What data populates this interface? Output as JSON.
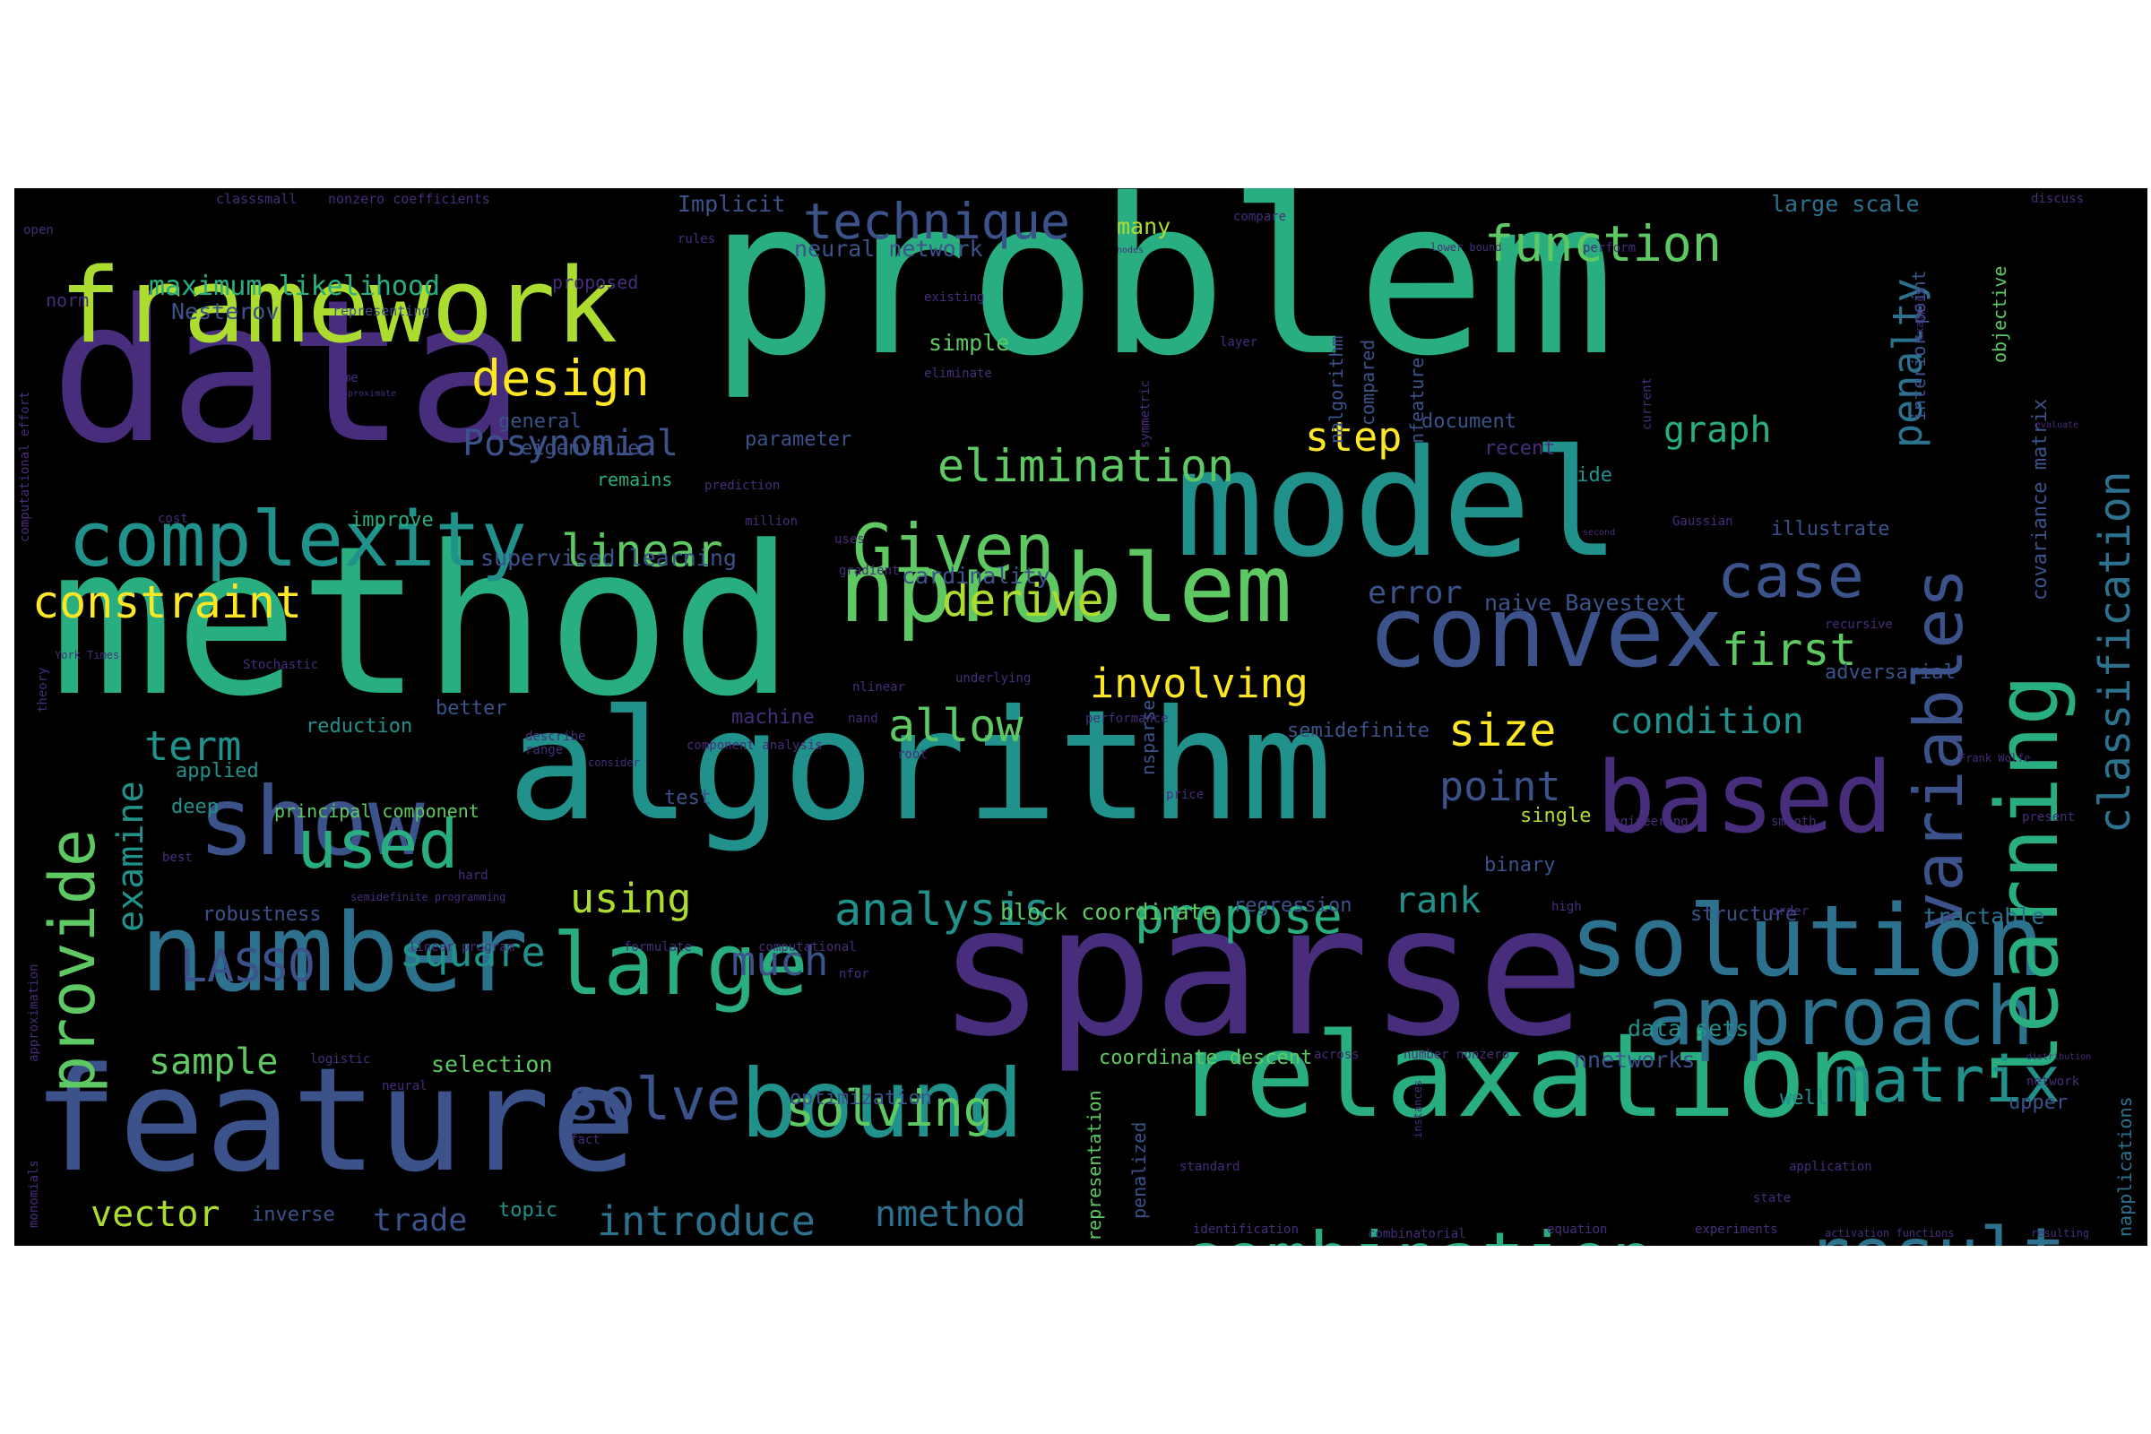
{
  "palette": {
    "purple": "#472d7b",
    "indigo": "#3b528b",
    "blue": "#2c728e",
    "teal": "#21918c",
    "green": "#28ae80",
    "lime": "#5ec962",
    "yellowgreen": "#addc30",
    "yellow": "#fde725",
    "background": "#000000"
  },
  "words": [
    {
      "text": "problem",
      "c": "green"
    },
    {
      "text": "method",
      "c": "green"
    },
    {
      "text": "data",
      "c": "purple"
    },
    {
      "text": "algorithm",
      "c": "teal"
    },
    {
      "text": "sparse",
      "c": "purple"
    },
    {
      "text": "feature",
      "c": "indigo"
    },
    {
      "text": "model",
      "c": "teal"
    },
    {
      "text": "relaxation",
      "c": "green"
    },
    {
      "text": "framework",
      "c": "yellowgreen"
    },
    {
      "text": "number",
      "c": "blue"
    },
    {
      "text": "nproblem",
      "c": "lime"
    },
    {
      "text": "solution",
      "c": "blue"
    },
    {
      "text": "convex",
      "c": "indigo"
    },
    {
      "text": "based",
      "c": "purple"
    },
    {
      "text": "large",
      "c": "green"
    },
    {
      "text": "show",
      "c": "indigo"
    },
    {
      "text": "bound",
      "c": "teal"
    },
    {
      "text": "approach",
      "c": "blue"
    },
    {
      "text": "complexity",
      "c": "teal"
    },
    {
      "text": "learning",
      "c": "green"
    },
    {
      "text": "combination",
      "c": "green"
    },
    {
      "text": "variables",
      "c": "indigo"
    },
    {
      "text": "result",
      "c": "blue"
    },
    {
      "text": "Given",
      "c": "lime"
    },
    {
      "text": "provide",
      "c": "lime"
    },
    {
      "text": "matrix",
      "c": "teal"
    },
    {
      "text": "solve",
      "c": "indigo"
    },
    {
      "text": "used",
      "c": "green"
    },
    {
      "text": "case",
      "c": "indigo"
    },
    {
      "text": "function",
      "c": "lime"
    },
    {
      "text": "technique",
      "c": "indigo"
    },
    {
      "text": "solving",
      "c": "lime"
    },
    {
      "text": "propose",
      "c": "green"
    },
    {
      "text": "design",
      "c": "yellow"
    },
    {
      "text": "classification",
      "c": "blue"
    },
    {
      "text": "elimination",
      "c": "lime"
    },
    {
      "text": "analysis",
      "c": "teal"
    },
    {
      "text": "LASSO",
      "c": "indigo"
    },
    {
      "text": "constraint",
      "c": "yellow"
    },
    {
      "text": "linear",
      "c": "lime"
    },
    {
      "text": "derive",
      "c": "yellowgreen"
    },
    {
      "text": "allow",
      "c": "lime"
    },
    {
      "text": "first",
      "c": "lime"
    },
    {
      "text": "square",
      "c": "teal"
    },
    {
      "text": "much",
      "c": "indigo"
    },
    {
      "text": "involving",
      "c": "yellow"
    },
    {
      "text": "introduce",
      "c": "blue"
    },
    {
      "text": "size",
      "c": "yellow"
    },
    {
      "text": "sample",
      "c": "lime"
    },
    {
      "text": "term",
      "c": "teal"
    },
    {
      "text": "penalty",
      "c": "blue"
    },
    {
      "text": "examine",
      "c": "teal"
    },
    {
      "text": "point",
      "c": "indigo"
    },
    {
      "text": "using",
      "c": "yellowgreen"
    },
    {
      "text": "vector",
      "c": "yellowgreen"
    },
    {
      "text": "nmethod",
      "c": "blue"
    },
    {
      "text": "Posynomial",
      "c": "indigo"
    },
    {
      "text": "trade",
      "c": "indigo"
    },
    {
      "text": "step",
      "c": "yellow"
    },
    {
      "text": "rank",
      "c": "teal"
    },
    {
      "text": "graph",
      "c": "green"
    },
    {
      "text": "condition",
      "c": "teal"
    },
    {
      "text": "error",
      "c": "indigo"
    },
    {
      "text": "maximum likelihood",
      "c": "green"
    },
    {
      "text": "large scale",
      "c": "blue"
    },
    {
      "text": "neural network",
      "c": "indigo"
    },
    {
      "text": "Implicit",
      "c": "indigo"
    },
    {
      "text": "supervised learning",
      "c": "indigo"
    },
    {
      "text": "cardinality",
      "c": "indigo"
    },
    {
      "text": "naive Bayestext",
      "c": "indigo"
    },
    {
      "text": "covariance matrix",
      "c": "indigo"
    },
    {
      "text": "interior point",
      "c": "indigo"
    },
    {
      "text": "block coordinate",
      "c": "lime"
    },
    {
      "text": "regression",
      "c": "indigo"
    },
    {
      "text": "structure",
      "c": "indigo"
    },
    {
      "text": "tractable",
      "c": "blue"
    },
    {
      "text": "data sets",
      "c": "teal"
    },
    {
      "text": "nnetworks",
      "c": "indigo"
    },
    {
      "text": "coordinate descent",
      "c": "lime"
    },
    {
      "text": "selection",
      "c": "lime"
    },
    {
      "text": "principal component",
      "c": "lime"
    },
    {
      "text": "robustness",
      "c": "indigo"
    },
    {
      "text": "inverse",
      "c": "indigo"
    },
    {
      "text": "topic",
      "c": "teal"
    },
    {
      "text": "optimization",
      "c": "indigo"
    },
    {
      "text": "many",
      "c": "yellowgreen"
    },
    {
      "text": "Nesterov",
      "c": "indigo"
    },
    {
      "text": "general",
      "c": "indigo"
    },
    {
      "text": "eigenvalue",
      "c": "indigo"
    },
    {
      "text": "remains",
      "c": "green"
    },
    {
      "text": "improve",
      "c": "green"
    },
    {
      "text": "reduction",
      "c": "teal"
    },
    {
      "text": "applied",
      "c": "teal"
    },
    {
      "text": "deep",
      "c": "teal"
    },
    {
      "text": "test",
      "c": "indigo"
    },
    {
      "text": "better",
      "c": "indigo"
    },
    {
      "text": "machine",
      "c": "purple"
    },
    {
      "text": "simple",
      "c": "lime"
    },
    {
      "text": "parameter",
      "c": "indigo"
    },
    {
      "text": "document",
      "c": "indigo"
    },
    {
      "text": "recent",
      "c": "purple"
    },
    {
      "text": "wide",
      "c": "teal"
    },
    {
      "text": "illustrate",
      "c": "indigo"
    },
    {
      "text": "adversarial",
      "c": "indigo"
    },
    {
      "text": "semidefinite",
      "c": "indigo"
    },
    {
      "text": "single",
      "c": "yellowgreen"
    },
    {
      "text": "binary",
      "c": "indigo"
    },
    {
      "text": "well",
      "c": "teal"
    },
    {
      "text": "upper",
      "c": "indigo"
    },
    {
      "text": "norm",
      "c": "purple"
    },
    {
      "text": "proposed",
      "c": "purple"
    },
    {
      "text": "representing",
      "c": "indigo"
    },
    {
      "text": "classsmall",
      "c": "purple"
    },
    {
      "text": "nonzero coefficients",
      "c": "purple"
    },
    {
      "text": "compare",
      "c": "purple"
    },
    {
      "text": "perform",
      "c": "purple"
    },
    {
      "text": "discuss",
      "c": "purple"
    },
    {
      "text": "existing",
      "c": "purple"
    },
    {
      "text": "layer",
      "c": "purple"
    },
    {
      "text": "eliminate",
      "c": "purple"
    },
    {
      "text": "lower bound",
      "c": "purple"
    },
    {
      "text": "examples",
      "c": "purple"
    },
    {
      "text": "prediction",
      "c": "purple"
    },
    {
      "text": "uses",
      "c": "purple"
    },
    {
      "text": "million",
      "c": "purple"
    },
    {
      "text": "gradient",
      "c": "purple"
    },
    {
      "text": "Gaussian",
      "c": "purple"
    },
    {
      "text": "recursive",
      "c": "purple"
    },
    {
      "text": "underlying",
      "c": "purple"
    },
    {
      "text": "nlinear",
      "c": "purple"
    },
    {
      "text": "performance",
      "c": "purple"
    },
    {
      "text": "Stochastic",
      "c": "purple"
    },
    {
      "text": "describe",
      "c": "purple"
    },
    {
      "text": "range",
      "c": "purple"
    },
    {
      "text": "component analysis",
      "c": "purple"
    },
    {
      "text": "nand",
      "c": "purple"
    },
    {
      "text": "root",
      "c": "purple"
    },
    {
      "text": "consider",
      "c": "purple"
    },
    {
      "text": "Frank Wolfe",
      "c": "purple"
    },
    {
      "text": "price",
      "c": "purple"
    },
    {
      "text": "engineering",
      "c": "purple"
    },
    {
      "text": "smooth",
      "c": "purple"
    },
    {
      "text": "present",
      "c": "purple"
    },
    {
      "text": "hard",
      "c": "purple"
    },
    {
      "text": "best",
      "c": "purple"
    },
    {
      "text": "semidefinite programming",
      "c": "purple"
    },
    {
      "text": "linear program",
      "c": "purple"
    },
    {
      "text": "formulate",
      "c": "purple"
    },
    {
      "text": "computational",
      "c": "purple"
    },
    {
      "text": "nfor",
      "c": "purple"
    },
    {
      "text": "order",
      "c": "purple"
    },
    {
      "text": "high",
      "c": "purple"
    },
    {
      "text": "logistic",
      "c": "purple"
    },
    {
      "text": "neural",
      "c": "purple"
    },
    {
      "text": "fact",
      "c": "purple"
    },
    {
      "text": "across",
      "c": "purple"
    },
    {
      "text": "number nonzero",
      "c": "purple"
    },
    {
      "text": "network",
      "c": "purple"
    },
    {
      "text": "standard",
      "c": "purple"
    },
    {
      "text": "application",
      "c": "purple"
    },
    {
      "text": "state",
      "c": "purple"
    },
    {
      "text": "identification",
      "c": "purple"
    },
    {
      "text": "combinatorial",
      "c": "purple"
    },
    {
      "text": "equation",
      "c": "purple"
    },
    {
      "text": "experiments",
      "c": "purple"
    },
    {
      "text": "activation functions",
      "c": "purple"
    },
    {
      "text": "resulting",
      "c": "purple"
    },
    {
      "text": "open",
      "c": "purple"
    },
    {
      "text": "York Times",
      "c": "purple"
    },
    {
      "text": "time",
      "c": "purple"
    },
    {
      "text": "cost",
      "c": "purple"
    },
    {
      "text": "rules",
      "c": "purple"
    },
    {
      "text": "nalgorithm",
      "c": "indigo"
    },
    {
      "text": "compared",
      "c": "indigo"
    },
    {
      "text": "nfeature",
      "c": "indigo"
    },
    {
      "text": "symmetric",
      "c": "purple"
    },
    {
      "text": "current",
      "c": "purple"
    },
    {
      "text": "objective",
      "c": "lime"
    },
    {
      "text": "nsparse",
      "c": "indigo"
    },
    {
      "text": "representation",
      "c": "lime"
    },
    {
      "text": "penalized",
      "c": "indigo"
    },
    {
      "text": "napplications",
      "c": "blue"
    },
    {
      "text": "computational effort",
      "c": "purple"
    },
    {
      "text": "theory",
      "c": "purple"
    },
    {
      "text": "approximation",
      "c": "purple"
    },
    {
      "text": "monomials",
      "c": "purple"
    },
    {
      "text": "instances",
      "c": "purple"
    },
    {
      "text": "approximate",
      "c": "purple"
    },
    {
      "text": "nodes",
      "c": "purple"
    },
    {
      "text": "evaluate",
      "c": "purple"
    },
    {
      "text": "distribution",
      "c": "purple"
    },
    {
      "text": "second",
      "c": "purple"
    }
  ]
}
